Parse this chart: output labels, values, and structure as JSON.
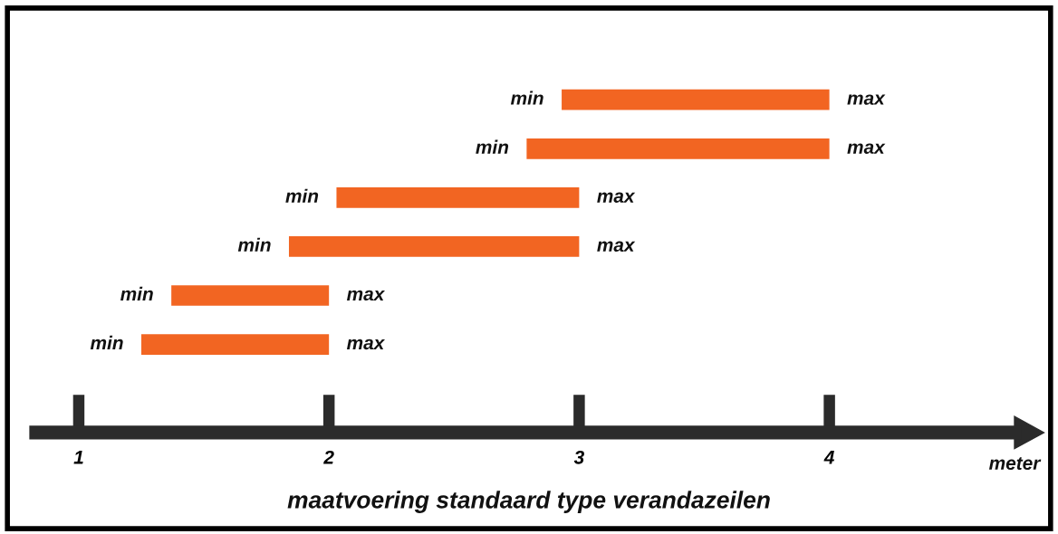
{
  "chart_data": {
    "type": "bar",
    "orientation": "horizontal",
    "title": "maatvoering standaard type verandazeilen",
    "xlabel": "meter",
    "categories": [
      null,
      null,
      null,
      null,
      null,
      null
    ],
    "base": [
      2.93,
      2.79,
      2.03,
      1.84,
      1.37,
      1.25
    ],
    "values": [
      1.07,
      1.21,
      0.97,
      1.16,
      0.63,
      0.75
    ],
    "color": "#f26522",
    "xlim": [
      0.83,
      4.74
    ],
    "xticks": [
      1,
      2,
      3,
      4
    ],
    "grid": false,
    "annotations": [
      {
        "text": "min",
        "x": 2.93
      },
      {
        "text": "max",
        "x": 4.0
      },
      {
        "text": "min",
        "x": 2.79
      },
      {
        "text": "max",
        "x": 4.0
      },
      {
        "text": "min",
        "x": 2.03
      },
      {
        "text": "max",
        "x": 3.0
      },
      {
        "text": "min",
        "x": 1.84
      },
      {
        "text": "max",
        "x": 3.0
      },
      {
        "text": "min",
        "x": 1.37
      },
      {
        "text": "max",
        "x": 2.0
      },
      {
        "text": "min",
        "x": 1.25
      },
      {
        "text": "max",
        "x": 2.0
      }
    ]
  }
}
